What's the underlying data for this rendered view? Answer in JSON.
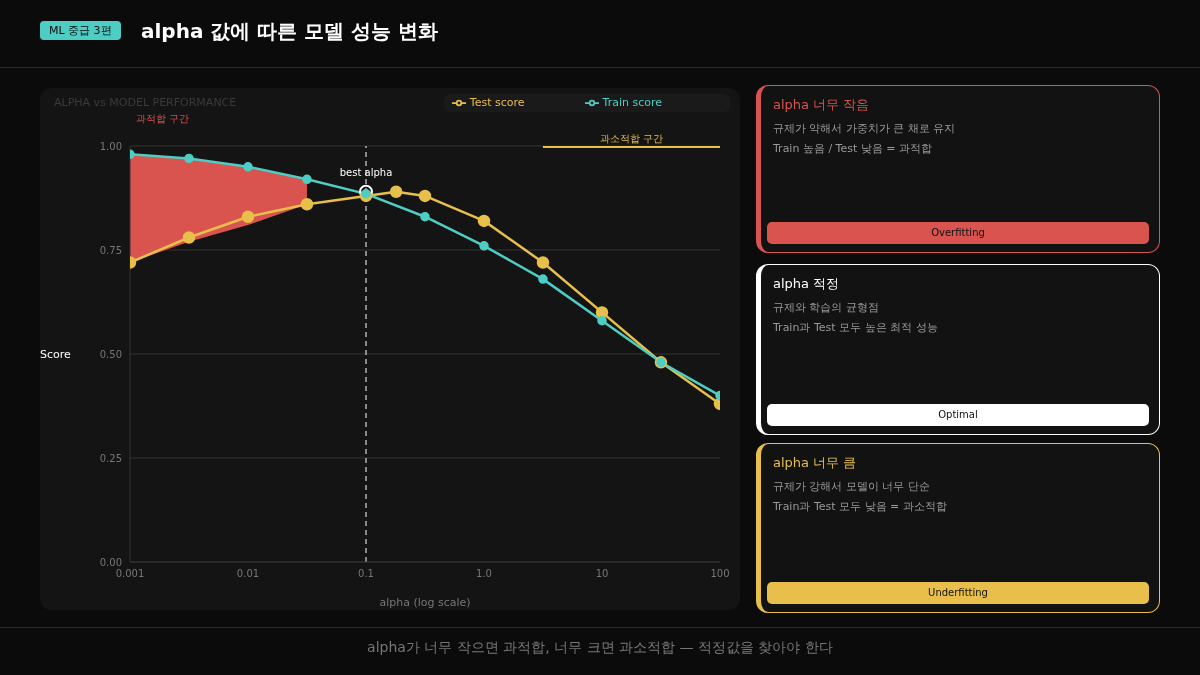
{
  "chart_data": [
    {
      "type": "line",
      "title": "ALPHA vs MODEL PERFORMANCE",
      "xlabel": "alpha (log scale)",
      "ylabel": "Score",
      "annotations": [
        "ML 중급 3편",
        "alpha 값에 따른 모델 성능 변화",
        "alpha가 너무 작으면 과적합, 너무 크면 과소적합 — 적정값을 찾아야 한다",
        "과적합 구간",
        "과소적합 구간",
        {
          "text": "best alpha",
          "x": 0.1,
          "y": 0.89
        }
      ],
      "series": [
        {
          "name": "Train score",
          "color": "#4ecdc4",
          "x": [
            0.001,
            0.00316,
            0.01,
            0.0316,
            0.1,
            0.316,
            1,
            3.16,
            10,
            31.6,
            100
          ],
          "values": [
            0.98,
            0.97,
            0.95,
            0.92,
            0.885,
            0.83,
            0.76,
            0.68,
            0.58,
            0.48,
            0.4
          ],
          "lower": [
            0.72,
            0.77,
            0.81,
            0.86,
            null,
            null,
            null,
            null,
            null,
            null,
            null
          ],
          "upper": [
            0.98,
            0.97,
            0.95,
            0.92,
            null,
            null,
            null,
            null,
            null,
            null,
            null
          ]
        },
        {
          "name": "Test score",
          "color": "#e8bf4a",
          "x": [
            0.001,
            0.00316,
            0.01,
            0.0316,
            0.1,
            0.18,
            0.316,
            1,
            3.16,
            10,
            31.6,
            100
          ],
          "values": [
            0.72,
            0.78,
            0.83,
            0.86,
            0.88,
            0.89,
            0.88,
            0.82,
            0.72,
            0.6,
            0.48,
            0.38
          ]
        },
        {
          "type": "line",
          "color": "#e8bf4a",
          "x": [
            3.16,
            100
          ],
          "values": [
            1,
            1
          ],
          "marker": "none"
        }
      ],
      "xlim": [
        0.001,
        100
      ],
      "xticks": [
        0.001,
        0.01,
        0.1,
        {
          "value": 1,
          "label": "1.0"
        },
        10,
        100
      ],
      "ylim": [
        0,
        1
      ],
      "yticks": [
        {
          "value": 0,
          "label": "0.00"
        },
        0.25,
        {
          "value": 0.5,
          "label": "0.50"
        },
        0.75,
        {
          "value": 1,
          "label": "1.00"
        }
      ],
      "log": "x",
      "grid": "y",
      "legend": "top right",
      "marker": "circle",
      "line_style": "solid",
      "ref_lines": [
        {
          "axis": "x",
          "value": 0.1,
          "color": "#ffffff",
          "line_style": "dashed"
        }
      ]
    },
    {
      "type": "other",
      "title": "alpha 너무 작음",
      "color": "#d9534f",
      "annotations": [
        "규제가 약해서 가중치가 큰 채로 유지",
        "Train 높음 / Test 낮음 = 과적합",
        "Overfitting"
      ]
    },
    {
      "type": "other",
      "title": "alpha 적정",
      "color": "#ffffff",
      "annotations": [
        "규제와 학습의 균형점",
        "Train과 Test 모두 높은 최적 성능",
        "Optimal"
      ]
    },
    {
      "type": "other",
      "title": "alpha 너무 큼",
      "color": "#e8bf4a",
      "annotations": [
        "규제가 강해서 모델이 너무 단순",
        "Train과 Test 모두 낮음 = 과소적합",
        "Underfitting"
      ]
    }
  ]
}
